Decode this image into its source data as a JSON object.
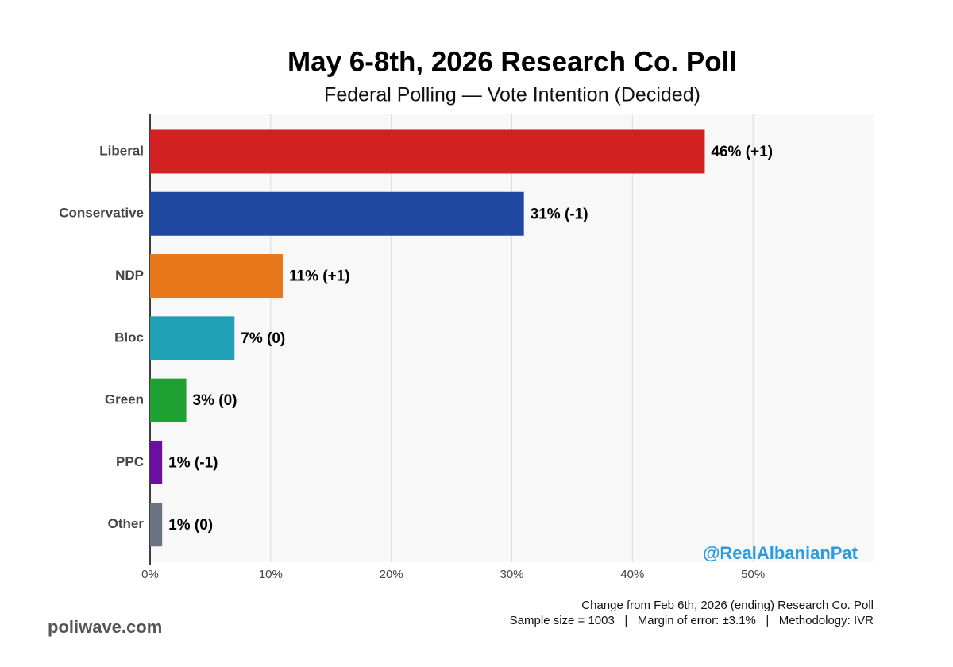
{
  "chart_data": {
    "type": "barh",
    "title": "May 6-8th, 2026 Research Co. Poll",
    "subtitle": "Federal Polling — Vote Intention (Decided)",
    "categories": [
      "Liberal",
      "Conservative",
      "NDP",
      "Bloc",
      "Green",
      "PPC",
      "Other"
    ],
    "values": [
      46,
      31,
      11,
      7,
      3,
      1,
      1
    ],
    "value_labels": [
      "46% (+1)",
      "31% (-1)",
      "11% (+1)",
      "7% (0)",
      "3% (0)",
      "1% (-1)",
      "1% (0)"
    ],
    "colors": [
      "#d32020",
      "#1f48a0",
      "#e8761a",
      "#20a0b4",
      "#1ea032",
      "#6a0fa0",
      "#6b7280"
    ],
    "xlim": [
      0,
      60
    ],
    "xticks": [
      {
        "value": 0,
        "label": "0%"
      },
      {
        "value": 10,
        "label": "10%"
      },
      {
        "value": 20,
        "label": "20%"
      },
      {
        "value": 30,
        "label": "30%"
      },
      {
        "value": 40,
        "label": "40%"
      },
      {
        "value": 50,
        "label": "50%"
      }
    ],
    "grid": true,
    "watermark": "@RealAlbanianPat",
    "notes": [
      "Change from Feb 6th, 2026 (ending) Research Co. Poll",
      "Sample size = 1003   |   Margin of error: ±3.1%   |   Methodology: IVR"
    ],
    "source": "poliwave.com"
  }
}
